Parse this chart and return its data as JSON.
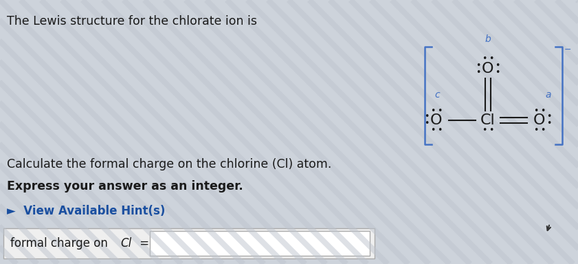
{
  "bg_color": "#cdd3db",
  "title_text": "The Lewis structure for the chlorate ion is",
  "title_fontsize": 12.5,
  "title_color": "#1a1a1a",
  "calc_text": "Calculate the formal charge on the chlorine (Cl) atom.",
  "express_text": "Express your answer as an integer.",
  "hint_text": "►  View Available Hint(s)",
  "hint_color": "#1a4fa0",
  "label_text": "formal charge on Cl =",
  "structure_color": "#1a1a1a",
  "label_color": "#4472c4",
  "bracket_color": "#4472c4",
  "stripe_color": "#bec5ce",
  "input_box_bg": "#f0f0f0",
  "input_inner_bg": "#ffffff"
}
